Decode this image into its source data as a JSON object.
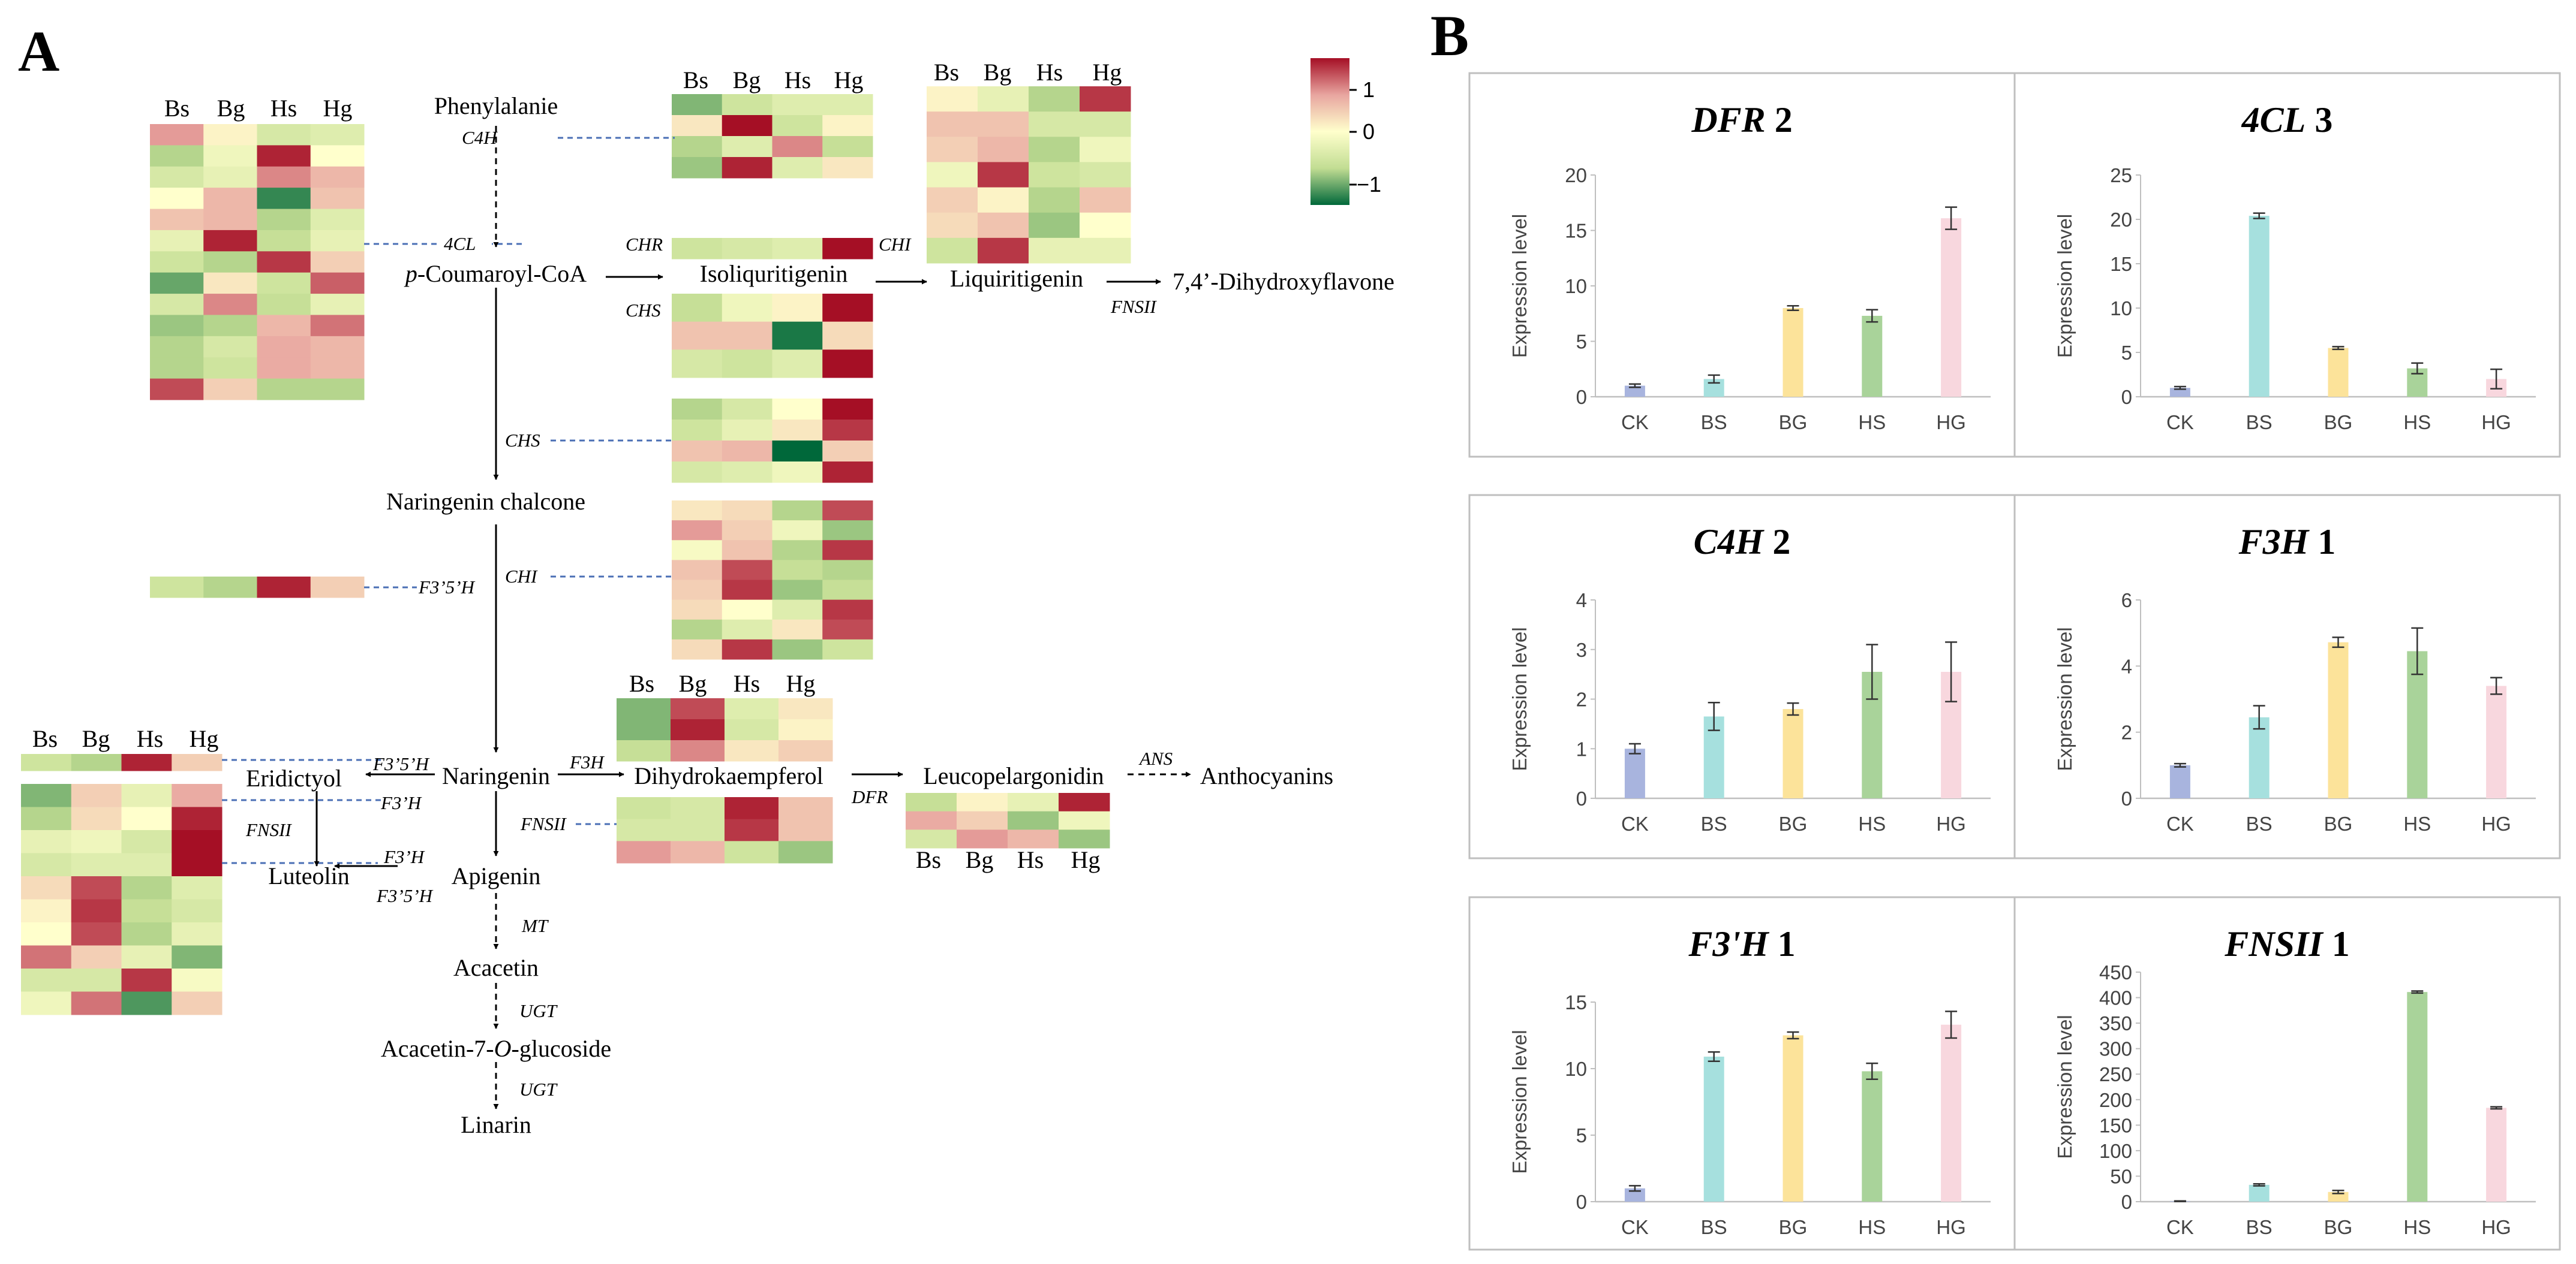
{
  "panels": {
    "a": "A",
    "b": "B"
  },
  "compounds": {
    "phe": "Phenylalanie",
    "pcoa_prefix": "p",
    "pcoa_rest": "-Coumaroyl-CoA",
    "iso": "Isoliquritigenin",
    "liq": "Liquiritigenin",
    "dhf": "7,4’-Dihydroxyflavone",
    "narchal": "Naringenin chalcone",
    "nar": "Naringenin",
    "dhk": "Dihydrokaempferol",
    "leuco": "Leucopelargonidin",
    "antho": "Anthocyanins",
    "erio": "Eridictyol",
    "lut": "Luteolin",
    "api": "Apigenin",
    "aca": "Acacetin",
    "acaglc_a": "Acacetin-7-",
    "acaglc_o": "O",
    "acaglc_b": "-glucoside",
    "lin": "Linarin"
  },
  "enzymes": {
    "c4h": "C4H",
    "fcl": "4CL",
    "chr": "CHR",
    "chi": "CHI",
    "chs": "CHS",
    "fns2": "FNSII",
    "f35h": "F3’5’H",
    "f3h": "F3H",
    "f3ph": "F3’H",
    "dfr": "DFR",
    "ans": "ANS",
    "mt": "MT",
    "ugt": "UGT"
  },
  "heatmap_cols": [
    "Bs",
    "Bg",
    "Hs",
    "Hg"
  ],
  "heatmap_colors": {
    "low": "#00683A",
    "mid_low": "#C2DD93",
    "mid": "#FFFFCC",
    "mid_high": "#E8A5A0",
    "high": "#A50F25"
  },
  "colorbar": {
    "ticks": [
      "1",
      "0",
      "−1"
    ],
    "range": [
      -1.5,
      1.5
    ]
  },
  "heatmaps": [
    {
      "id": "4cl",
      "rows": [
        [
          0.8,
          0.1,
          -0.5,
          -0.4
        ],
        [
          -0.8,
          -0.2,
          1.4,
          0.0
        ],
        [
          -0.5,
          -0.3,
          0.9,
          0.6
        ],
        [
          0.0,
          0.6,
          -1.3,
          0.5
        ],
        [
          0.5,
          0.6,
          -0.8,
          -0.4
        ],
        [
          -0.3,
          1.4,
          -0.7,
          -0.3
        ],
        [
          -0.6,
          -0.8,
          1.3,
          0.4
        ],
        [
          -1.1,
          0.2,
          -0.6,
          1.1
        ],
        [
          -0.5,
          0.9,
          -0.7,
          -0.3
        ],
        [
          -0.9,
          -0.8,
          0.6,
          1.0
        ],
        [
          -0.8,
          -0.5,
          0.7,
          0.6
        ],
        [
          -0.8,
          -0.6,
          0.7,
          0.6
        ],
        [
          1.2,
          0.4,
          -0.8,
          -0.8
        ]
      ]
    },
    {
      "id": "c4h",
      "rows": [
        [
          -1.0,
          -0.6,
          -0.4,
          -0.4
        ],
        [
          0.2,
          1.5,
          -0.6,
          0.1
        ],
        [
          -0.8,
          -0.4,
          0.9,
          -0.7
        ],
        [
          -0.9,
          1.4,
          -0.4,
          0.2
        ]
      ]
    },
    {
      "id": "chr",
      "rows": [
        [
          -0.6,
          -0.5,
          -0.4,
          1.5
        ]
      ]
    },
    {
      "id": "chi_top",
      "rows": [
        [
          0.1,
          -0.3,
          -0.8,
          1.3
        ],
        [
          0.5,
          0.5,
          -0.5,
          -0.5
        ],
        [
          0.4,
          0.6,
          -0.8,
          -0.2
        ],
        [
          -0.2,
          1.3,
          -0.6,
          -0.5
        ],
        [
          0.4,
          0.1,
          -0.8,
          0.5
        ],
        [
          0.3,
          0.5,
          -0.9,
          0.0
        ],
        [
          -0.6,
          1.3,
          -0.3,
          -0.3
        ]
      ]
    },
    {
      "id": "chs_top",
      "rows": [
        [
          -0.7,
          -0.2,
          0.1,
          1.5
        ],
        [
          0.5,
          0.5,
          -1.4,
          0.3
        ],
        [
          -0.5,
          -0.6,
          -0.4,
          1.5
        ]
      ]
    },
    {
      "id": "chs",
      "rows": [
        [
          -0.8,
          -0.5,
          0.0,
          1.5
        ],
        [
          -0.6,
          -0.3,
          0.2,
          1.3
        ],
        [
          0.5,
          0.6,
          -1.5,
          0.4
        ],
        [
          -0.5,
          -0.4,
          -0.2,
          1.4
        ]
      ]
    },
    {
      "id": "chi",
      "rows": [
        [
          0.2,
          0.3,
          -0.8,
          1.2
        ],
        [
          0.8,
          0.4,
          -0.2,
          -0.9
        ],
        [
          -0.1,
          0.5,
          -0.8,
          1.3
        ],
        [
          0.5,
          1.2,
          -0.7,
          -0.8
        ],
        [
          0.4,
          1.3,
          -0.9,
          -0.7
        ],
        [
          0.3,
          0.0,
          -0.4,
          1.3
        ],
        [
          -0.8,
          -0.4,
          0.2,
          1.2
        ],
        [
          0.3,
          1.3,
          -0.9,
          -0.6
        ]
      ]
    },
    {
      "id": "f35h_left",
      "rows": [
        [
          -0.6,
          -0.8,
          1.4,
          0.4
        ]
      ]
    },
    {
      "id": "f35h_bot",
      "rows": [
        [
          -0.6,
          -0.8,
          1.4,
          0.4
        ]
      ]
    },
    {
      "id": "f3ph",
      "rows": [
        [
          -1.0,
          0.4,
          -0.3,
          0.7
        ],
        [
          -0.8,
          0.3,
          0.0,
          1.4
        ],
        [
          -0.3,
          -0.2,
          -0.5,
          1.5
        ],
        [
          -0.5,
          -0.4,
          -0.4,
          1.5
        ],
        [
          0.3,
          1.2,
          -0.8,
          -0.4
        ],
        [
          0.1,
          1.3,
          -0.7,
          -0.5
        ],
        [
          0.0,
          1.2,
          -0.8,
          -0.3
        ],
        [
          1.0,
          0.4,
          -0.3,
          -1.0
        ],
        [
          -0.5,
          -0.5,
          1.3,
          -0.1
        ],
        [
          -0.2,
          1.0,
          -1.2,
          0.4
        ]
      ]
    },
    {
      "id": "f3h",
      "rows": [
        [
          -1.0,
          1.2,
          -0.4,
          0.2
        ],
        [
          -1.0,
          1.4,
          -0.5,
          0.1
        ],
        [
          -0.7,
          0.9,
          0.2,
          0.4
        ]
      ]
    },
    {
      "id": "fns",
      "rows": [
        [
          -0.6,
          -0.5,
          1.4,
          0.5
        ],
        [
          -0.5,
          -0.5,
          1.3,
          0.5
        ],
        [
          0.8,
          0.6,
          -0.6,
          -0.9
        ]
      ]
    },
    {
      "id": "dfr",
      "rows": [
        [
          -0.7,
          0.1,
          -0.3,
          1.4
        ],
        [
          0.7,
          0.4,
          -0.9,
          -0.2
        ],
        [
          -0.5,
          0.8,
          0.6,
          -0.9
        ]
      ]
    }
  ],
  "chart_data": [
    {
      "type": "bar",
      "title_gene": "DFR",
      "title_num": " 2",
      "categories": [
        "CK",
        "BS",
        "BG",
        "HS",
        "HG"
      ],
      "values": [
        1.0,
        1.6,
        8.0,
        7.3,
        16.1
      ],
      "errors": [
        0.15,
        0.35,
        0.2,
        0.55,
        1.0
      ],
      "ylim": [
        0,
        20
      ],
      "yticks": [
        "0",
        "5",
        "10",
        "15",
        "20"
      ],
      "ylabel": "Expression level",
      "colors": [
        "#A8B4DE",
        "#A6E0DE",
        "#FCE39A",
        "#A9D39A",
        "#F8D7DE"
      ]
    },
    {
      "type": "bar",
      "title_gene": "4CL",
      "title_num": " 3",
      "categories": [
        "CK",
        "BS",
        "BG",
        "HS",
        "HG"
      ],
      "values": [
        1.0,
        20.4,
        5.5,
        3.2,
        2.0
      ],
      "errors": [
        0.15,
        0.3,
        0.15,
        0.6,
        1.1
      ],
      "ylim": [
        0,
        25
      ],
      "yticks": [
        "0",
        "5",
        "10",
        "15",
        "20",
        "25"
      ],
      "ylabel": "Expression level",
      "colors": [
        "#A8B4DE",
        "#A6E0DE",
        "#FCE39A",
        "#A9D39A",
        "#F8D7DE"
      ]
    },
    {
      "type": "bar",
      "title_gene": "C4H",
      "title_num": " 2",
      "categories": [
        "CK",
        "BS",
        "BG",
        "HS",
        "HG"
      ],
      "values": [
        1.0,
        1.65,
        1.8,
        2.55,
        2.55
      ],
      "errors": [
        0.1,
        0.28,
        0.12,
        0.55,
        0.6
      ],
      "ylim": [
        0,
        4
      ],
      "yticks": [
        "0",
        "1",
        "2",
        "3",
        "4"
      ],
      "ylabel": "Expression level",
      "colors": [
        "#A8B4DE",
        "#A6E0DE",
        "#FCE39A",
        "#A9D39A",
        "#F8D7DE"
      ]
    },
    {
      "type": "bar",
      "title_gene": "F3H",
      "title_num": " 1",
      "categories": [
        "CK",
        "BS",
        "BG",
        "HS",
        "HG"
      ],
      "values": [
        1.0,
        2.45,
        4.72,
        4.45,
        3.4
      ],
      "errors": [
        0.05,
        0.35,
        0.15,
        0.7,
        0.25
      ],
      "ylim": [
        0,
        6
      ],
      "yticks": [
        "0",
        "2",
        "4",
        "6"
      ],
      "ylabel": "Expression level",
      "colors": [
        "#A8B4DE",
        "#A6E0DE",
        "#FCE39A",
        "#A9D39A",
        "#F8D7DE"
      ]
    },
    {
      "type": "bar",
      "title_gene": "F3'H",
      "title_num": " 1",
      "categories": [
        "CK",
        "BS",
        "BG",
        "HS",
        "HG"
      ],
      "values": [
        1.0,
        10.9,
        12.5,
        9.8,
        13.3
      ],
      "errors": [
        0.2,
        0.35,
        0.25,
        0.6,
        1.0
      ],
      "ylim": [
        0,
        15
      ],
      "yticks": [
        "0",
        "5",
        "10",
        "15"
      ],
      "ylabel": "Expression level",
      "colors": [
        "#A8B4DE",
        "#A6E0DE",
        "#FCE39A",
        "#A9D39A",
        "#F8D7DE"
      ]
    },
    {
      "type": "bar",
      "title_gene": "FNSII",
      "title_num": " 1",
      "categories": [
        "CK",
        "BS",
        "BG",
        "HS",
        "HG"
      ],
      "values": [
        1,
        33,
        19,
        411,
        184
      ],
      "errors": [
        0.5,
        2,
        3,
        2,
        2
      ],
      "ylim": [
        0,
        450
      ],
      "yticks": [
        "0",
        "50",
        "100",
        "150",
        "200",
        "250",
        "300",
        "350",
        "400",
        "450"
      ],
      "ylabel": "Expression level",
      "colors": [
        "#A8B4DE",
        "#A6E0DE",
        "#FCE39A",
        "#A9D39A",
        "#F8D7DE"
      ]
    }
  ]
}
